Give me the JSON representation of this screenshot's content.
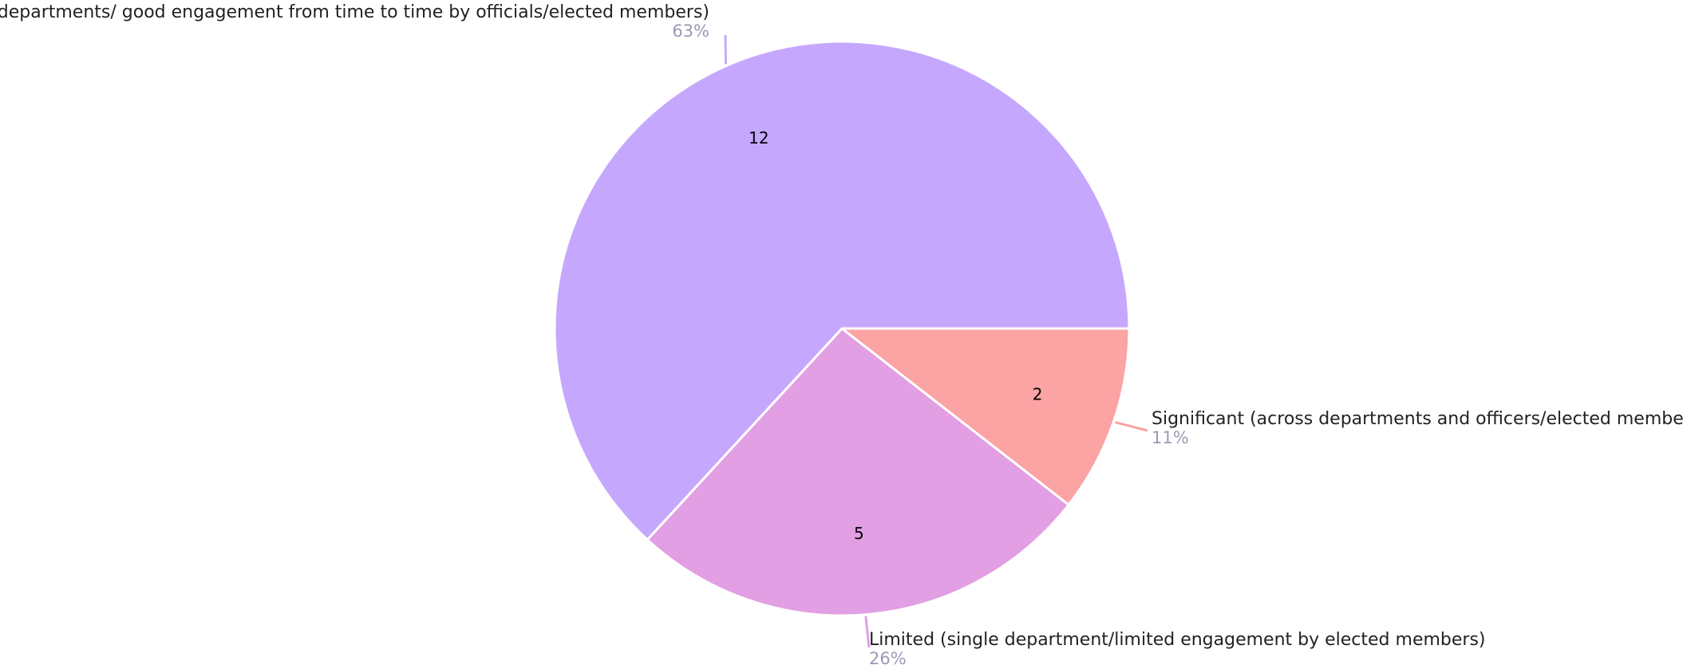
{
  "chart_data": {
    "type": "pie",
    "categories": [
      "Significant (across departments and officers/elected member",
      "Limited (single department/limited engagement by elected members)",
      "l departments/ good engagement from time to time by officials/elected members)"
    ],
    "values": [
      2,
      5,
      12
    ],
    "percent_labels": [
      "11%",
      "26%",
      "63%"
    ],
    "colors": [
      "#fca3a3",
      "#e29fe3",
      "#c5a8fd"
    ]
  }
}
